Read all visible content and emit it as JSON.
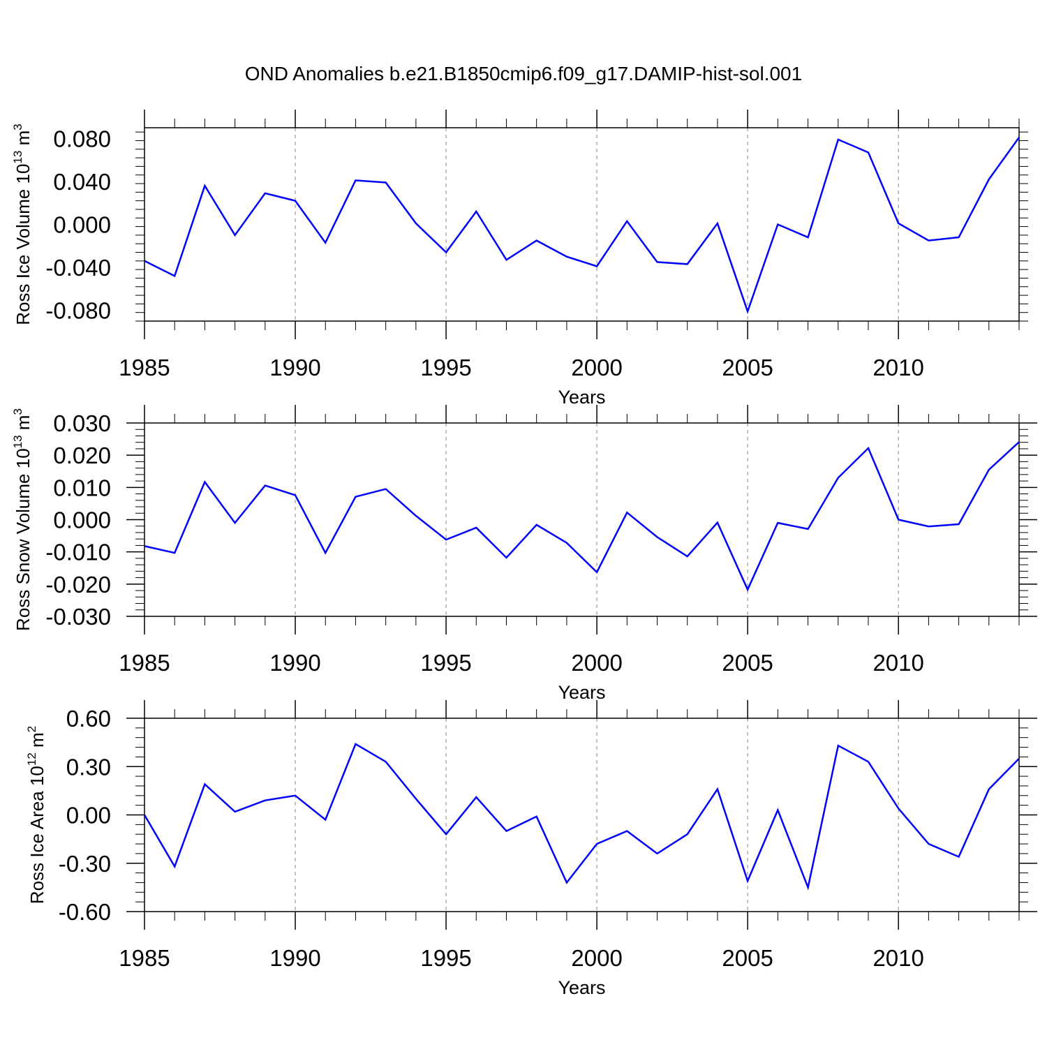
{
  "title": "OND Anomalies b.e21.B1850cmip6.f09_g17.DAMIP-hist-sol.001",
  "colors": {
    "line": "#0000ff",
    "axis": "#000000",
    "grid": "#999999"
  },
  "chart_data": [
    {
      "type": "line",
      "ylabel": "Ross Ice Volume 10",
      "ylabel_sup": "13",
      "ylabel_unit": " m",
      "ylabel_unit_sup": "3",
      "xlabel": "Years",
      "xlim": [
        1985,
        2014
      ],
      "ylim": [
        -0.09,
        0.09
      ],
      "x_ticks": [
        "1985",
        "1990",
        "1995",
        "2000",
        "2005",
        "2010"
      ],
      "x_tick_values": [
        1985,
        1990,
        1995,
        2000,
        2005,
        2010
      ],
      "y_ticks": [
        "0.080",
        "0.040",
        "0.000",
        "-0.040",
        "-0.080"
      ],
      "y_tick_values": [
        0.08,
        0.04,
        0.0,
        -0.04,
        -0.08
      ],
      "grid": "vertical dashed at major ticks",
      "x": [
        1985,
        1986,
        1987,
        1988,
        1989,
        1990,
        1991,
        1992,
        1993,
        1994,
        1995,
        1996,
        1997,
        1998,
        1999,
        2000,
        2001,
        2002,
        2003,
        2004,
        2005,
        2006,
        2007,
        2008,
        2009,
        2010,
        2011,
        2012,
        2013,
        2014
      ],
      "series": [
        {
          "values": [
            -0.034,
            -0.048,
            0.036,
            -0.01,
            0.029,
            0.022,
            -0.017,
            0.041,
            0.039,
            0.001,
            -0.026,
            0.012,
            -0.033,
            -0.015,
            -0.03,
            -0.039,
            0.003,
            -0.035,
            -0.037,
            0.001,
            -0.081,
            0.0,
            -0.012,
            0.079,
            0.067,
            0.001,
            -0.015,
            -0.012,
            0.042,
            0.081
          ]
        }
      ]
    },
    {
      "type": "line",
      "ylabel": "Ross Snow Volume 10",
      "ylabel_sup": "13",
      "ylabel_unit": " m",
      "ylabel_unit_sup": "3",
      "xlabel": "Years",
      "xlim": [
        1985,
        2014
      ],
      "ylim": [
        -0.03,
        0.03
      ],
      "x_ticks": [
        "1985",
        "1990",
        "1995",
        "2000",
        "2005",
        "2010"
      ],
      "x_tick_values": [
        1985,
        1990,
        1995,
        2000,
        2005,
        2010
      ],
      "y_ticks": [
        "0.030",
        "0.020",
        "0.010",
        "0.000",
        "-0.010",
        "-0.020",
        "-0.030"
      ],
      "y_tick_values": [
        0.03,
        0.02,
        0.01,
        0.0,
        -0.01,
        -0.02,
        -0.03
      ],
      "grid": "vertical dashed at major ticks",
      "x": [
        1985,
        1986,
        1987,
        1988,
        1989,
        1990,
        1991,
        1992,
        1993,
        1994,
        1995,
        1996,
        1997,
        1998,
        1999,
        2000,
        2001,
        2002,
        2003,
        2004,
        2005,
        2006,
        2007,
        2008,
        2009,
        2010,
        2011,
        2012,
        2013,
        2014
      ],
      "series": [
        {
          "values": [
            -0.0082,
            -0.0103,
            0.0117,
            -0.001,
            0.0106,
            0.0076,
            -0.0103,
            0.0071,
            0.0095,
            0.0012,
            -0.0062,
            -0.0025,
            -0.0118,
            -0.0016,
            -0.0072,
            -0.0163,
            0.0022,
            -0.0054,
            -0.0114,
            -0.0009,
            -0.0217,
            -0.001,
            -0.0029,
            0.013,
            0.0222,
            0.0,
            -0.0021,
            -0.0014,
            0.0155,
            0.0241
          ]
        }
      ]
    },
    {
      "type": "line",
      "ylabel": "Ross Ice Area 10",
      "ylabel_sup": "12",
      "ylabel_unit": " m",
      "ylabel_unit_sup": "2",
      "xlabel": "Years",
      "xlim": [
        1985,
        2014
      ],
      "ylim": [
        -0.6,
        0.6
      ],
      "x_ticks": [
        "1985",
        "1990",
        "1995",
        "2000",
        "2005",
        "2010"
      ],
      "x_tick_values": [
        1985,
        1990,
        1995,
        2000,
        2005,
        2010
      ],
      "y_ticks": [
        "0.60",
        "0.30",
        "0.00",
        "-0.30",
        "-0.60"
      ],
      "y_tick_values": [
        0.6,
        0.3,
        0.0,
        -0.3,
        -0.6
      ],
      "grid": "vertical dashed at major ticks",
      "x": [
        1985,
        1986,
        1987,
        1988,
        1989,
        1990,
        1991,
        1992,
        1993,
        1994,
        1995,
        1996,
        1997,
        1998,
        1999,
        2000,
        2001,
        2002,
        2003,
        2004,
        2005,
        2006,
        2007,
        2008,
        2009,
        2010,
        2011,
        2012,
        2013,
        2014
      ],
      "series": [
        {
          "values": [
            0.0,
            -0.32,
            0.19,
            0.02,
            0.09,
            0.12,
            -0.03,
            0.44,
            0.33,
            0.1,
            -0.12,
            0.11,
            -0.1,
            -0.01,
            -0.42,
            -0.18,
            -0.1,
            -0.24,
            -0.12,
            0.16,
            -0.41,
            0.03,
            -0.45,
            0.43,
            0.33,
            0.04,
            -0.18,
            -0.26,
            0.16,
            0.35
          ]
        }
      ]
    }
  ]
}
